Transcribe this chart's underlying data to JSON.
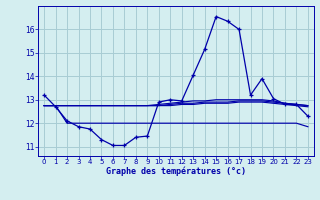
{
  "title": "Graphe des températures (°c)",
  "background_color": "#d4eef0",
  "grid_color": "#a8ccd4",
  "line_color": "#0000aa",
  "x_hours": [
    0,
    1,
    2,
    3,
    4,
    5,
    6,
    7,
    8,
    9,
    10,
    11,
    12,
    13,
    14,
    15,
    16,
    17,
    18,
    19,
    20,
    21,
    22,
    23
  ],
  "curve_main": [
    13.2,
    12.7,
    12.1,
    11.85,
    11.75,
    11.3,
    11.05,
    11.05,
    11.4,
    11.45,
    12.9,
    13.0,
    12.95,
    14.05,
    15.15,
    16.55,
    16.35,
    16.0,
    13.2,
    13.9,
    13.05,
    12.8,
    12.8,
    12.3
  ],
  "curve_upper": [
    12.75,
    12.75,
    12.75,
    12.75,
    12.75,
    12.75,
    12.75,
    12.75,
    12.75,
    12.75,
    12.8,
    12.85,
    12.9,
    12.95,
    12.95,
    13.0,
    13.0,
    13.0,
    13.0,
    13.0,
    12.95,
    12.85,
    12.8,
    12.75
  ],
  "curve_mid1": [
    12.75,
    12.75,
    12.75,
    12.75,
    12.75,
    12.75,
    12.75,
    12.75,
    12.75,
    12.75,
    12.75,
    12.8,
    12.85,
    12.85,
    12.9,
    12.9,
    12.9,
    12.95,
    12.95,
    12.95,
    12.9,
    12.85,
    12.8,
    12.75
  ],
  "curve_mid2": [
    12.75,
    12.75,
    12.75,
    12.75,
    12.75,
    12.75,
    12.75,
    12.75,
    12.75,
    12.75,
    12.75,
    12.75,
    12.8,
    12.8,
    12.85,
    12.85,
    12.85,
    12.9,
    12.9,
    12.9,
    12.85,
    12.8,
    12.75,
    12.7
  ],
  "curve_lower": [
    12.75,
    12.75,
    12.0,
    12.0,
    12.0,
    12.0,
    12.0,
    12.0,
    12.0,
    12.0,
    12.0,
    12.0,
    12.0,
    12.0,
    12.0,
    12.0,
    12.0,
    12.0,
    12.0,
    12.0,
    12.0,
    12.0,
    12.0,
    11.85
  ],
  "ylim": [
    10.6,
    17.0
  ],
  "yticks": [
    11,
    12,
    13,
    14,
    15,
    16
  ],
  "xlim": [
    -0.5,
    23.5
  ],
  "xlabel_fontsize": 6.0,
  "xtick_fontsize": 5.0,
  "ytick_fontsize": 5.5
}
